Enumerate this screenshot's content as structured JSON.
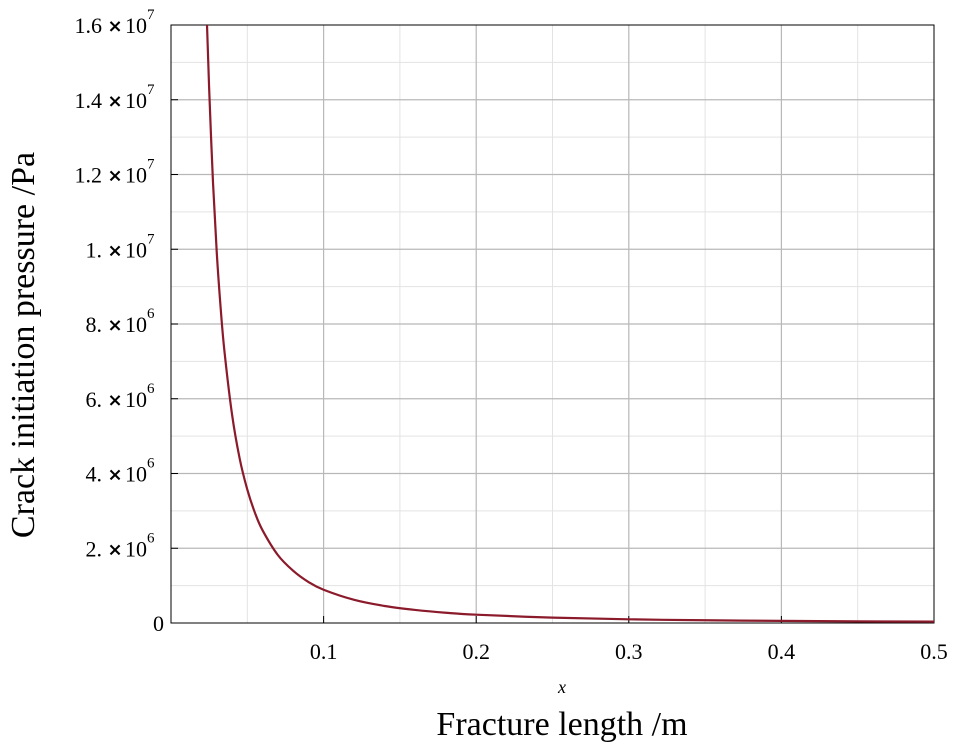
{
  "chart_data": {
    "type": "line",
    "title": "",
    "xlabel": "Fracture length /m",
    "ylabel": "Crack initiation pressure /Pa",
    "x_variable_label": "x",
    "xlim": [
      0.0,
      0.5
    ],
    "ylim": [
      0,
      16000000
    ],
    "grid": true,
    "x_ticks": [
      {
        "value": 0.1,
        "label": "0.1"
      },
      {
        "value": 0.2,
        "label": "0.2"
      },
      {
        "value": 0.3,
        "label": "0.3"
      },
      {
        "value": 0.4,
        "label": "0.4"
      },
      {
        "value": 0.5,
        "label": "0.5"
      }
    ],
    "y_ticks": [
      {
        "value": 0,
        "mantissa": "0",
        "exponent": ""
      },
      {
        "value": 2000000,
        "mantissa": "2.",
        "exponent": "6"
      },
      {
        "value": 4000000,
        "mantissa": "4.",
        "exponent": "6"
      },
      {
        "value": 6000000,
        "mantissa": "6.",
        "exponent": "6"
      },
      {
        "value": 8000000,
        "mantissa": "8.",
        "exponent": "6"
      },
      {
        "value": 10000000,
        "mantissa": "1.",
        "exponent": "7"
      },
      {
        "value": 12000000,
        "mantissa": "1.2",
        "exponent": "7"
      },
      {
        "value": 14000000,
        "mantissa": "1.4",
        "exponent": "7"
      },
      {
        "value": 16000000,
        "mantissa": "1.6",
        "exponent": "7"
      }
    ],
    "times_symbol": "×",
    "base": "10",
    "series": [
      {
        "color": "#8b1a2b",
        "x": [
          0.0236,
          0.025,
          0.0275,
          0.03,
          0.0325,
          0.035,
          0.04,
          0.045,
          0.05,
          0.055,
          0.06,
          0.07,
          0.08,
          0.09,
          0.1,
          0.12,
          0.14,
          0.16,
          0.18,
          0.2,
          0.25,
          0.3,
          0.35,
          0.4,
          0.45,
          0.5
        ],
        "y": [
          16000000,
          14300000,
          11800000,
          9900000,
          8450000,
          7280000,
          5580000,
          4400000,
          3570000,
          2950000,
          2480000,
          1820000,
          1400000,
          1100000,
          890000,
          620000,
          455000,
          350000,
          275000,
          223000,
          143000,
          99000,
          73000,
          56000,
          44000,
          36000
        ]
      }
    ]
  }
}
